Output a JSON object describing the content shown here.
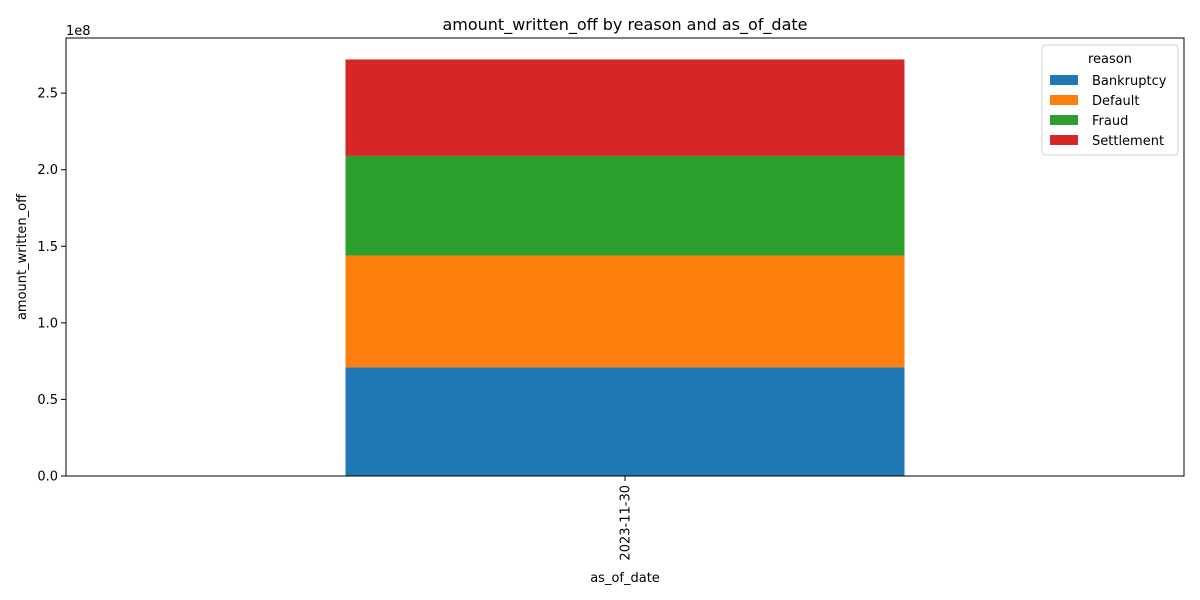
{
  "chart_data": {
    "type": "bar",
    "stacked": true,
    "title": "amount_written_off by reason and as_of_date",
    "xlabel": "as_of_date",
    "ylabel": "amount_written_off",
    "y_offset_text": "1e8",
    "categories": [
      "2023-11-30"
    ],
    "x_tick_rotation": 90,
    "ylim": [
      0,
      286000000.0
    ],
    "y_ticks": [
      0,
      50000000.0,
      100000000.0,
      150000000.0,
      200000000.0,
      250000000.0
    ],
    "y_tick_labels": [
      "0.0",
      "0.5",
      "1.0",
      "1.5",
      "2.0",
      "2.5"
    ],
    "grid": false,
    "legend": {
      "title": "reason",
      "placement": "top-right"
    },
    "series": [
      {
        "name": "Bankruptcy",
        "color": "#1f77b4",
        "values": [
          71000000
        ]
      },
      {
        "name": "Default",
        "color": "#ff7f0e",
        "values": [
          73000000
        ]
      },
      {
        "name": "Fraud",
        "color": "#2ca02c",
        "values": [
          65000000
        ]
      },
      {
        "name": "Settlement",
        "color": "#d62728",
        "values": [
          63000000
        ]
      }
    ]
  }
}
